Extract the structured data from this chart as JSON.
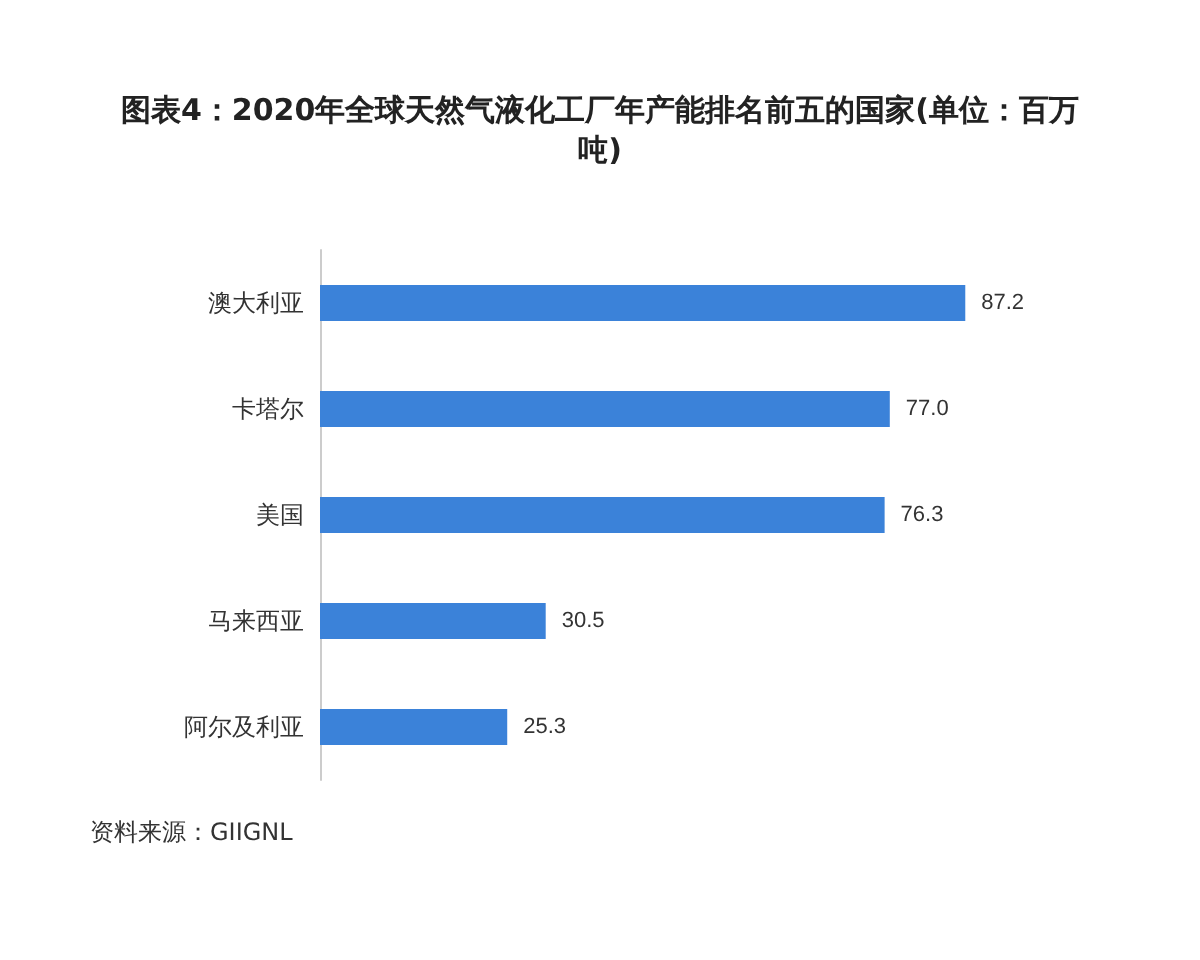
{
  "chart_data": {
    "type": "bar",
    "orientation": "horizontal",
    "title": "图表4：2020年全球天然气液化工厂年产能排名前五的国家(单位：百万吨)",
    "categories": [
      "澳大利亚",
      "卡塔尔",
      "美国",
      "马来西亚",
      "阿尔及利亚"
    ],
    "values": [
      87.2,
      77.0,
      76.3,
      30.5,
      25.3
    ],
    "value_labels": [
      "87.2",
      "77.0",
      "76.3",
      "30.5",
      "25.3"
    ],
    "color": "#3b82d9",
    "annotations": [
      "资料来源：GIIGNL"
    ]
  }
}
